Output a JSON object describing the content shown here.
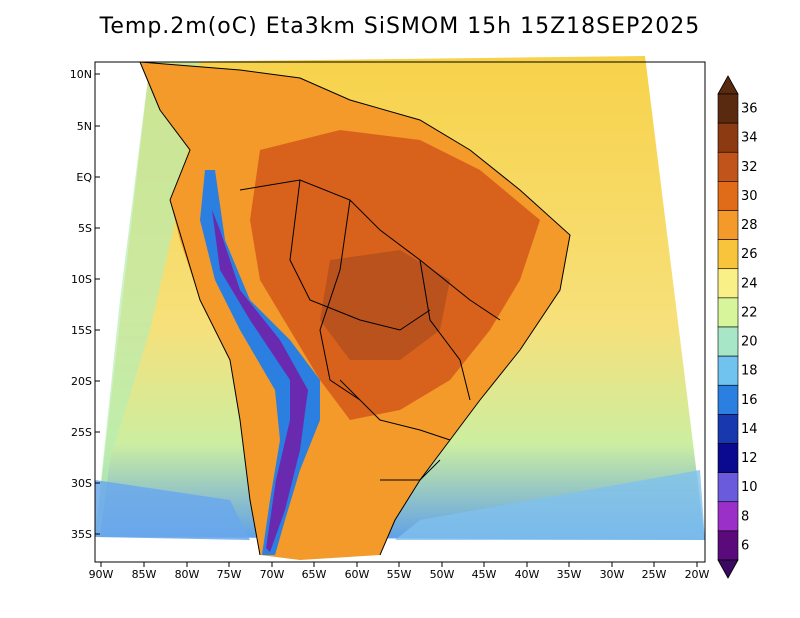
{
  "title": "Temp.2m(oC) Eta3km SiSMOM 15h 15Z18SEP2025",
  "map": {
    "lat_labels": [
      "10N",
      "5N",
      "EQ",
      "5S",
      "10S",
      "15S",
      "20S",
      "25S",
      "30S",
      "35S"
    ],
    "lon_labels": [
      "90W",
      "85W",
      "80W",
      "75W",
      "70W",
      "65W",
      "60W",
      "55W",
      "50W",
      "45W",
      "40W",
      "35W",
      "30W",
      "25W",
      "20W"
    ]
  },
  "colorbar": {
    "labels": [
      "36",
      "34",
      "32",
      "30",
      "28",
      "26",
      "24",
      "22",
      "20",
      "18",
      "16",
      "14",
      "12",
      "10",
      "8",
      "6"
    ],
    "colors": [
      "#5a2a10",
      "#8b3a12",
      "#c0541a",
      "#e06c1a",
      "#f39a2a",
      "#f7c43c",
      "#faf088",
      "#d7f59a",
      "#a8e6c8",
      "#6fc3ee",
      "#2a7fe0",
      "#1838b0",
      "#0a0a90",
      "#6a5adc",
      "#9a30c8",
      "#5a0a7a"
    ],
    "under_color": "#3a0a60",
    "over_color": "#5a2a10"
  }
}
